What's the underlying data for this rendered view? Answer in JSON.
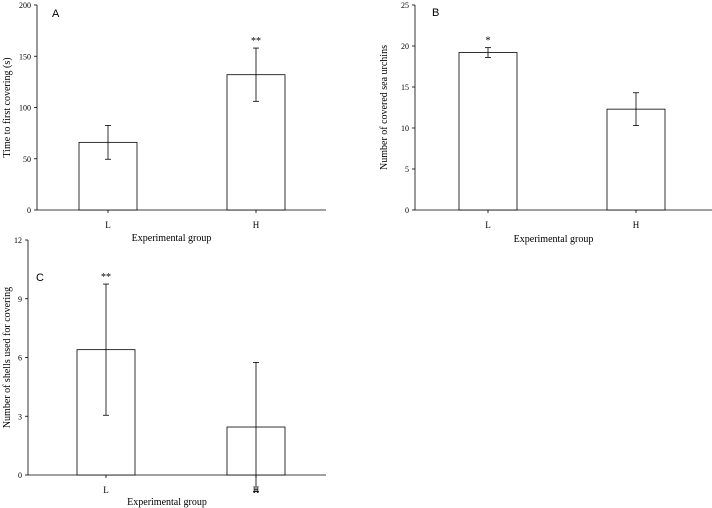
{
  "chart_data": [
    {
      "type": "bar",
      "panel": "A",
      "categories": [
        "L",
        "H"
      ],
      "values": [
        66,
        132
      ],
      "errors": [
        16.5,
        26
      ],
      "significance": [
        "",
        "**"
      ],
      "xlabel": "Experimental group",
      "ylabel": "Time to first covering (s)",
      "ylim": [
        0,
        200
      ],
      "yticks": [
        0,
        50,
        100,
        150,
        200
      ],
      "grid": false,
      "colors": {
        "bar_fill": "#ffffff",
        "bar_stroke": "#000000"
      }
    },
    {
      "type": "bar",
      "panel": "B",
      "categories": [
        "L",
        "H"
      ],
      "values": [
        19.2,
        12.3
      ],
      "errors": [
        0.6,
        2.0
      ],
      "significance": [
        "*",
        ""
      ],
      "xlabel": "Experimental group",
      "ylabel": "Number of covered sea urchins",
      "ylim": [
        0,
        25
      ],
      "yticks": [
        0,
        5,
        10,
        15,
        20,
        25
      ],
      "grid": false,
      "colors": {
        "bar_fill": "#ffffff",
        "bar_stroke": "#000000"
      }
    },
    {
      "type": "bar",
      "panel": "C",
      "categories": [
        "L",
        "H"
      ],
      "values": [
        6.4,
        2.45
      ],
      "errors": [
        3.35,
        3.3
      ],
      "significance": [
        "**",
        ""
      ],
      "xlabel": "Experimental group",
      "ylabel": "Number of shells used for covering",
      "ylim": [
        0,
        12
      ],
      "yticks": [
        0,
        3,
        6,
        9,
        12
      ],
      "grid": false,
      "colors": {
        "bar_fill": "#ffffff",
        "bar_stroke": "#000000"
      }
    }
  ]
}
